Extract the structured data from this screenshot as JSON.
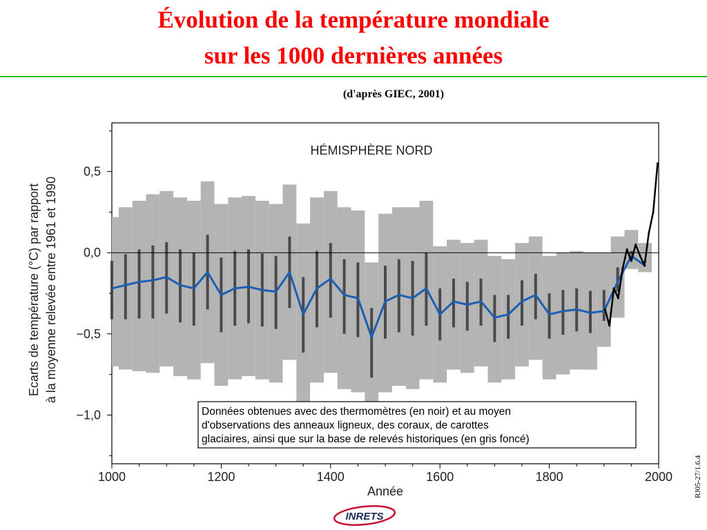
{
  "header": {
    "title_line1": "Évolution de la température mondiale",
    "title_line2": "sur les 1000 dernières années",
    "source": "(d'après GIEC, 2001)"
  },
  "footer": {
    "slide_code": "RJ05-27/1.6.4",
    "logo_text": "INRETS"
  },
  "colors": {
    "title": "#ff0000",
    "rule": "#1ec41e",
    "uncertainty_band": "#b4b4b4",
    "proxy_series": "#4a4a4a",
    "smoothed_series": "#1a5fb4",
    "instrumental_series": "#000000"
  },
  "chart_data": {
    "type": "line",
    "title": "HÉMISPHÈRE NORD",
    "xlabel": "Année",
    "ylabel_line1": "Ecarts de température (°C) par rapport",
    "ylabel_line2": "à la moyenne relevée entre 1961 et 1990",
    "xlim": [
      1000,
      2000
    ],
    "ylim": [
      -1.3,
      0.8
    ],
    "x_ticks": [
      1000,
      1200,
      1400,
      1600,
      1800,
      2000
    ],
    "x_tick_labels": [
      "1000",
      "1200",
      "1400",
      "1600",
      "1800",
      "2000"
    ],
    "y_ticks": [
      -1.0,
      -0.5,
      0.0,
      0.5
    ],
    "y_tick_labels": [
      "−1,0",
      "−0,5",
      "0,0",
      "0,5"
    ],
    "zero_line": true,
    "grid": false,
    "annotation_line1": "Données obtenues avec des thermomètres (en noir) et au moyen",
    "annotation_line2": "d'observations des anneaux ligneux, des coraux, de carottes",
    "annotation_line3": "glaciaires, ainsi que sur la base de relevés historiques (en gris foncé)",
    "x": [
      1000,
      1025,
      1050,
      1075,
      1100,
      1125,
      1150,
      1175,
      1200,
      1225,
      1250,
      1275,
      1300,
      1325,
      1350,
      1375,
      1400,
      1425,
      1450,
      1475,
      1500,
      1525,
      1550,
      1575,
      1600,
      1625,
      1650,
      1675,
      1700,
      1725,
      1750,
      1775,
      1800,
      1825,
      1850,
      1875,
      1900,
      1925,
      1950,
      1975
    ],
    "series": [
      {
        "values": [
          -0.22,
          -0.2,
          -0.18,
          -0.17,
          -0.15,
          -0.2,
          -0.22,
          -0.12,
          -0.26,
          -0.22,
          -0.21,
          -0.23,
          -0.24,
          -0.12,
          -0.38,
          -0.22,
          -0.16,
          -0.26,
          -0.28,
          -0.52,
          -0.3,
          -0.26,
          -0.28,
          -0.22,
          -0.38,
          -0.3,
          -0.32,
          -0.3,
          -0.4,
          -0.38,
          -0.3,
          -0.26,
          -0.38,
          -0.36,
          -0.35,
          -0.37,
          -0.36,
          -0.18,
          -0.02,
          -0.08
        ]
      },
      {
        "name": "Données obtenues avec des thermomètres (en noir)",
        "x": [
          1902,
          1910,
          1918,
          1926,
          1934,
          1942,
          1950,
          1958,
          1966,
          1974,
          1982,
          1990,
          1998
        ],
        "values": [
          -0.35,
          -0.45,
          -0.22,
          -0.28,
          -0.1,
          0.02,
          -0.05,
          0.05,
          -0.02,
          -0.08,
          0.12,
          0.25,
          0.55
        ]
      }
    ],
    "band_lower": [
      -0.7,
      -0.72,
      -0.73,
      -0.74,
      -0.7,
      -0.76,
      -0.78,
      -0.68,
      -0.82,
      -0.78,
      -0.76,
      -0.78,
      -0.8,
      -0.66,
      -0.95,
      -0.8,
      -0.74,
      -0.84,
      -0.86,
      -1.12,
      -0.86,
      -0.82,
      -0.84,
      -0.78,
      -0.8,
      -0.72,
      -0.74,
      -0.7,
      -0.8,
      -0.78,
      -0.7,
      -0.66,
      -0.78,
      -0.75,
      -0.72,
      -0.72,
      -0.58,
      -0.4,
      -0.1,
      -0.12
    ],
    "band_upper": [
      0.22,
      0.28,
      0.32,
      0.36,
      0.38,
      0.34,
      0.32,
      0.44,
      0.3,
      0.34,
      0.35,
      0.32,
      0.3,
      0.42,
      0.18,
      0.34,
      0.38,
      0.28,
      0.26,
      -0.06,
      0.24,
      0.28,
      0.28,
      0.32,
      0.04,
      0.08,
      0.06,
      0.08,
      -0.02,
      -0.04,
      0.06,
      0.1,
      -0.02,
      0.0,
      0.01,
      0.0,
      0.0,
      0.1,
      0.14,
      0.06
    ]
  }
}
